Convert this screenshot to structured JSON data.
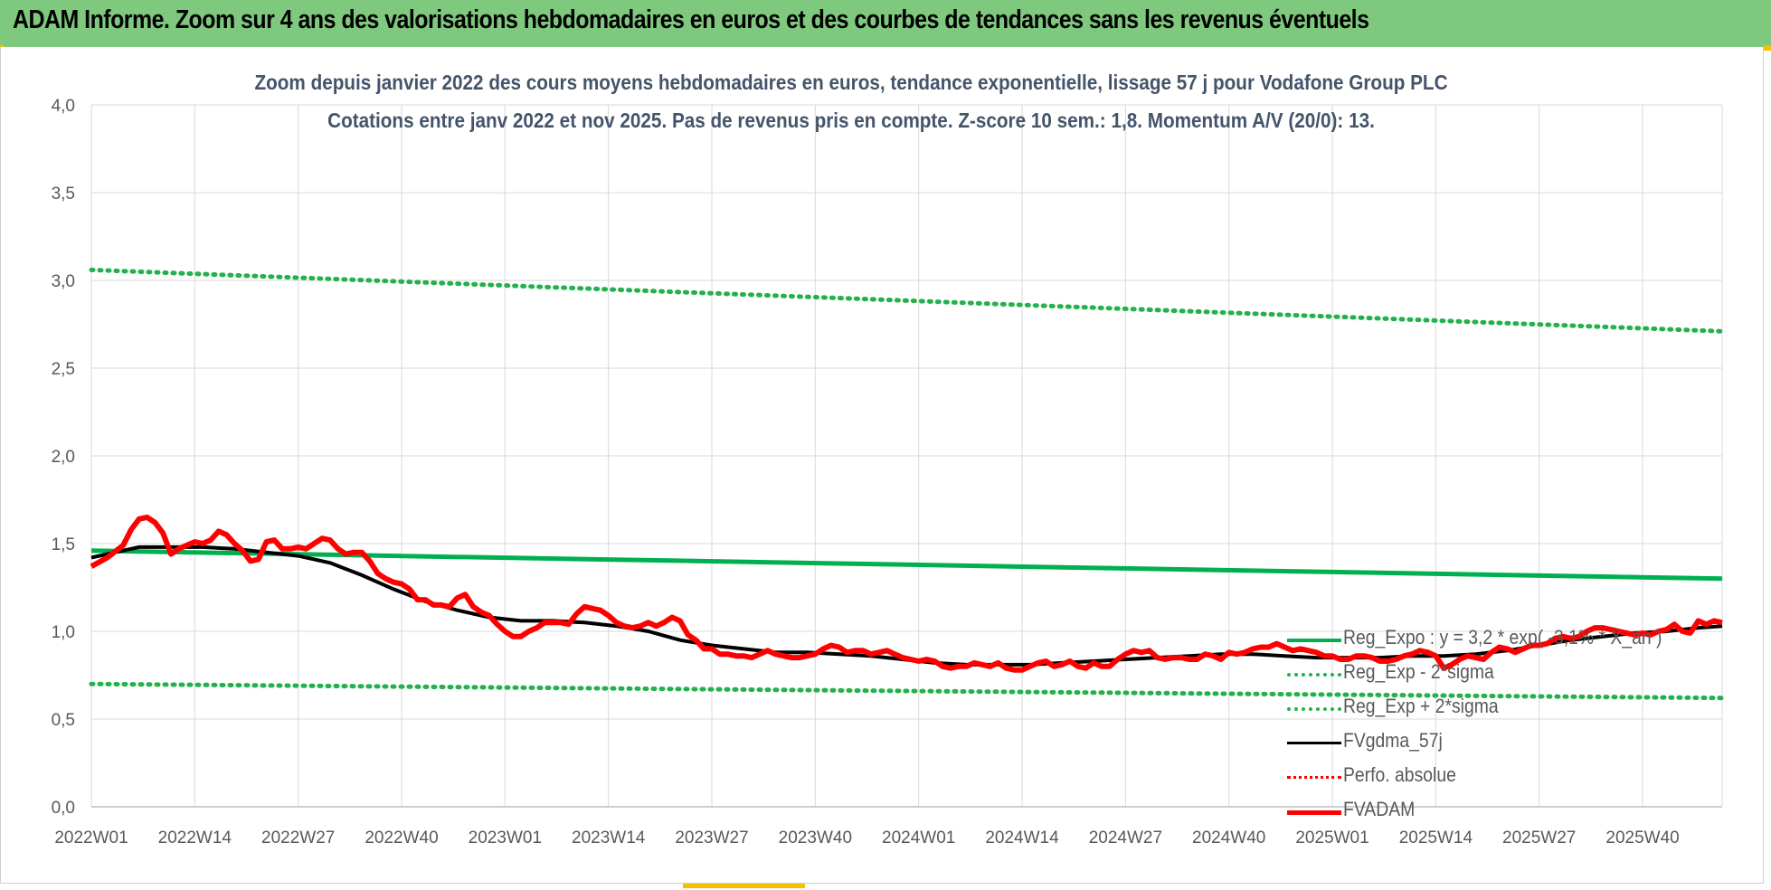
{
  "header": {
    "title": "ADAM Informe. Zoom sur 4 ans des valorisations hebdomadaires en euros et des courbes de tendances sans les revenus éventuels"
  },
  "colors": {
    "header_bg": "#7fc97f",
    "reg_green": "#00b050",
    "dotted_green": "#22b14c",
    "black": "#000000",
    "red": "#ff0000",
    "title_color": "#44546a"
  },
  "chart_data": {
    "type": "line",
    "title": "Zoom depuis janvier 2022 des cours moyens hebdomadaires en euros, tendance exponentielle, lissage 57 j pour Vodafone Group PLC",
    "subtitle": "Cotations entre janv 2022 et nov 2025. Pas de revenus pris en compte. Z-score 10 sem.: 1,8. Momentum A/V (20/0): 13.",
    "xlabel": "",
    "ylabel": "",
    "ylim": [
      0,
      4
    ],
    "y_ticks": [
      "0,0",
      "0,5",
      "1,0",
      "1,5",
      "2,0",
      "2,5",
      "3,0",
      "3,5",
      "4,0"
    ],
    "x_ticks": [
      "2022W01",
      "2022W14",
      "2022W27",
      "2022W40",
      "2023W01",
      "2023W14",
      "2023W27",
      "2023W40",
      "2024W01",
      "2024W14",
      "2024W27",
      "2024W40",
      "2025W01",
      "2025W14",
      "2025W27",
      "2025W40"
    ],
    "x_range_weeks": [
      0,
      205
    ],
    "grid": "vertical and horizontal",
    "legend_position": "bottom-right",
    "series": [
      {
        "name": "Reg_Expo : y = 3,2 * exp( -3,1% * X_an )",
        "style": "solid-green",
        "points": [
          [
            0,
            1.46
          ],
          [
            205,
            1.3
          ]
        ]
      },
      {
        "name": "Reg_Exp - 2*sigma",
        "style": "dotted-green",
        "points": [
          [
            0,
            0.7
          ],
          [
            205,
            0.62
          ]
        ]
      },
      {
        "name": "Reg_Exp + 2*sigma",
        "style": "dotted-green",
        "points": [
          [
            0,
            3.06
          ],
          [
            205,
            2.71
          ]
        ]
      },
      {
        "name": "FVgdma_57j",
        "style": "solid-black",
        "points": [
          [
            0,
            1.42
          ],
          [
            3,
            1.45
          ],
          [
            6,
            1.48
          ],
          [
            10,
            1.48
          ],
          [
            14,
            1.48
          ],
          [
            18,
            1.47
          ],
          [
            22,
            1.45
          ],
          [
            26,
            1.43
          ],
          [
            30,
            1.39
          ],
          [
            34,
            1.32
          ],
          [
            38,
            1.24
          ],
          [
            42,
            1.17
          ],
          [
            46,
            1.12
          ],
          [
            50,
            1.08
          ],
          [
            54,
            1.06
          ],
          [
            58,
            1.06
          ],
          [
            62,
            1.05
          ],
          [
            66,
            1.03
          ],
          [
            70,
            1.0
          ],
          [
            74,
            0.95
          ],
          [
            78,
            0.92
          ],
          [
            82,
            0.9
          ],
          [
            86,
            0.88
          ],
          [
            90,
            0.88
          ],
          [
            94,
            0.87
          ],
          [
            98,
            0.86
          ],
          [
            102,
            0.84
          ],
          [
            106,
            0.82
          ],
          [
            110,
            0.81
          ],
          [
            114,
            0.81
          ],
          [
            118,
            0.81
          ],
          [
            122,
            0.82
          ],
          [
            126,
            0.83
          ],
          [
            130,
            0.84
          ],
          [
            134,
            0.85
          ],
          [
            138,
            0.86
          ],
          [
            142,
            0.87
          ],
          [
            146,
            0.87
          ],
          [
            150,
            0.86
          ],
          [
            154,
            0.85
          ],
          [
            158,
            0.85
          ],
          [
            162,
            0.85
          ],
          [
            166,
            0.86
          ],
          [
            170,
            0.86
          ],
          [
            174,
            0.87
          ],
          [
            178,
            0.89
          ],
          [
            182,
            0.92
          ],
          [
            186,
            0.95
          ],
          [
            190,
            0.97
          ],
          [
            194,
            0.99
          ],
          [
            198,
            1.0
          ],
          [
            202,
            1.02
          ],
          [
            205,
            1.03
          ]
        ]
      },
      {
        "name": "Perfo. absolue",
        "style": "dotted-red",
        "points": []
      },
      {
        "name": "FVADAM",
        "style": "thick-red",
        "points": [
          [
            0,
            1.37
          ],
          [
            2,
            1.42
          ],
          [
            4,
            1.49
          ],
          [
            5,
            1.58
          ],
          [
            6,
            1.64
          ],
          [
            7,
            1.65
          ],
          [
            8,
            1.62
          ],
          [
            9,
            1.56
          ],
          [
            10,
            1.44
          ],
          [
            11,
            1.47
          ],
          [
            12,
            1.49
          ],
          [
            13,
            1.51
          ],
          [
            14,
            1.5
          ],
          [
            15,
            1.52
          ],
          [
            16,
            1.57
          ],
          [
            17,
            1.55
          ],
          [
            18,
            1.5
          ],
          [
            19,
            1.46
          ],
          [
            20,
            1.4
          ],
          [
            21,
            1.41
          ],
          [
            22,
            1.51
          ],
          [
            23,
            1.52
          ],
          [
            24,
            1.47
          ],
          [
            25,
            1.47
          ],
          [
            26,
            1.48
          ],
          [
            27,
            1.47
          ],
          [
            28,
            1.5
          ],
          [
            29,
            1.53
          ],
          [
            30,
            1.52
          ],
          [
            31,
            1.47
          ],
          [
            32,
            1.44
          ],
          [
            33,
            1.45
          ],
          [
            34,
            1.45
          ],
          [
            35,
            1.4
          ],
          [
            36,
            1.33
          ],
          [
            37,
            1.3
          ],
          [
            38,
            1.28
          ],
          [
            39,
            1.27
          ],
          [
            40,
            1.24
          ],
          [
            41,
            1.18
          ],
          [
            42,
            1.18
          ],
          [
            43,
            1.15
          ],
          [
            44,
            1.15
          ],
          [
            45,
            1.14
          ],
          [
            46,
            1.19
          ],
          [
            47,
            1.21
          ],
          [
            48,
            1.14
          ],
          [
            49,
            1.11
          ],
          [
            50,
            1.09
          ],
          [
            51,
            1.04
          ],
          [
            52,
            1.0
          ],
          [
            53,
            0.97
          ],
          [
            54,
            0.97
          ],
          [
            55,
            1.0
          ],
          [
            56,
            1.02
          ],
          [
            57,
            1.05
          ],
          [
            58,
            1.05
          ],
          [
            59,
            1.05
          ],
          [
            60,
            1.04
          ],
          [
            61,
            1.1
          ],
          [
            62,
            1.14
          ],
          [
            63,
            1.13
          ],
          [
            64,
            1.12
          ],
          [
            65,
            1.09
          ],
          [
            66,
            1.05
          ],
          [
            67,
            1.03
          ],
          [
            68,
            1.02
          ],
          [
            69,
            1.03
          ],
          [
            70,
            1.05
          ],
          [
            71,
            1.03
          ],
          [
            72,
            1.05
          ],
          [
            73,
            1.08
          ],
          [
            74,
            1.06
          ],
          [
            75,
            0.98
          ],
          [
            76,
            0.95
          ],
          [
            77,
            0.9
          ],
          [
            78,
            0.9
          ],
          [
            79,
            0.87
          ],
          [
            80,
            0.87
          ],
          [
            81,
            0.86
          ],
          [
            82,
            0.86
          ],
          [
            83,
            0.85
          ],
          [
            84,
            0.87
          ],
          [
            85,
            0.89
          ],
          [
            86,
            0.87
          ],
          [
            87,
            0.86
          ],
          [
            88,
            0.85
          ],
          [
            89,
            0.85
          ],
          [
            90,
            0.86
          ],
          [
            91,
            0.87
          ],
          [
            92,
            0.9
          ],
          [
            93,
            0.92
          ],
          [
            94,
            0.91
          ],
          [
            95,
            0.88
          ],
          [
            96,
            0.89
          ],
          [
            97,
            0.89
          ],
          [
            98,
            0.87
          ],
          [
            99,
            0.88
          ],
          [
            100,
            0.89
          ],
          [
            101,
            0.87
          ],
          [
            102,
            0.85
          ],
          [
            103,
            0.84
          ],
          [
            104,
            0.83
          ],
          [
            105,
            0.84
          ],
          [
            106,
            0.83
          ],
          [
            107,
            0.8
          ],
          [
            108,
            0.79
          ],
          [
            109,
            0.8
          ],
          [
            110,
            0.8
          ],
          [
            111,
            0.82
          ],
          [
            112,
            0.81
          ],
          [
            113,
            0.8
          ],
          [
            114,
            0.82
          ],
          [
            115,
            0.79
          ],
          [
            116,
            0.78
          ],
          [
            117,
            0.78
          ],
          [
            118,
            0.8
          ],
          [
            119,
            0.82
          ],
          [
            120,
            0.83
          ],
          [
            121,
            0.8
          ],
          [
            122,
            0.81
          ],
          [
            123,
            0.83
          ],
          [
            124,
            0.8
          ],
          [
            125,
            0.79
          ],
          [
            126,
            0.82
          ],
          [
            127,
            0.8
          ],
          [
            128,
            0.8
          ],
          [
            129,
            0.84
          ],
          [
            130,
            0.87
          ],
          [
            131,
            0.89
          ],
          [
            132,
            0.88
          ],
          [
            133,
            0.89
          ],
          [
            134,
            0.85
          ],
          [
            135,
            0.84
          ],
          [
            136,
            0.85
          ],
          [
            137,
            0.85
          ],
          [
            138,
            0.84
          ],
          [
            139,
            0.84
          ],
          [
            140,
            0.87
          ],
          [
            141,
            0.86
          ],
          [
            142,
            0.84
          ],
          [
            143,
            0.88
          ],
          [
            144,
            0.87
          ],
          [
            145,
            0.88
          ],
          [
            146,
            0.9
          ],
          [
            147,
            0.91
          ],
          [
            148,
            0.91
          ],
          [
            149,
            0.93
          ],
          [
            150,
            0.91
          ],
          [
            151,
            0.89
          ],
          [
            152,
            0.9
          ],
          [
            153,
            0.89
          ],
          [
            154,
            0.88
          ],
          [
            155,
            0.86
          ],
          [
            156,
            0.86
          ],
          [
            157,
            0.84
          ],
          [
            158,
            0.84
          ],
          [
            159,
            0.86
          ],
          [
            160,
            0.86
          ],
          [
            161,
            0.85
          ],
          [
            162,
            0.83
          ],
          [
            163,
            0.83
          ],
          [
            164,
            0.84
          ],
          [
            165,
            0.86
          ],
          [
            166,
            0.87
          ],
          [
            167,
            0.89
          ],
          [
            168,
            0.88
          ],
          [
            169,
            0.86
          ],
          [
            170,
            0.79
          ],
          [
            171,
            0.81
          ],
          [
            172,
            0.84
          ],
          [
            173,
            0.86
          ],
          [
            174,
            0.85
          ],
          [
            175,
            0.84
          ],
          [
            176,
            0.88
          ],
          [
            177,
            0.91
          ],
          [
            178,
            0.9
          ],
          [
            179,
            0.88
          ],
          [
            180,
            0.9
          ],
          [
            181,
            0.92
          ],
          [
            182,
            0.92
          ],
          [
            183,
            0.93
          ],
          [
            184,
            0.96
          ],
          [
            185,
            0.97
          ],
          [
            186,
            0.96
          ],
          [
            187,
            0.97
          ],
          [
            188,
            1.0
          ],
          [
            189,
            1.02
          ],
          [
            190,
            1.02
          ],
          [
            191,
            1.01
          ],
          [
            192,
            1.0
          ],
          [
            193,
            0.99
          ],
          [
            194,
            0.98
          ],
          [
            195,
            0.99
          ],
          [
            196,
            0.98
          ],
          [
            197,
            1.0
          ],
          [
            198,
            1.01
          ],
          [
            199,
            1.04
          ],
          [
            200,
            1.0
          ],
          [
            201,
            0.99
          ],
          [
            202,
            1.06
          ],
          [
            203,
            1.04
          ],
          [
            204,
            1.06
          ],
          [
            205,
            1.05
          ]
        ]
      }
    ]
  }
}
